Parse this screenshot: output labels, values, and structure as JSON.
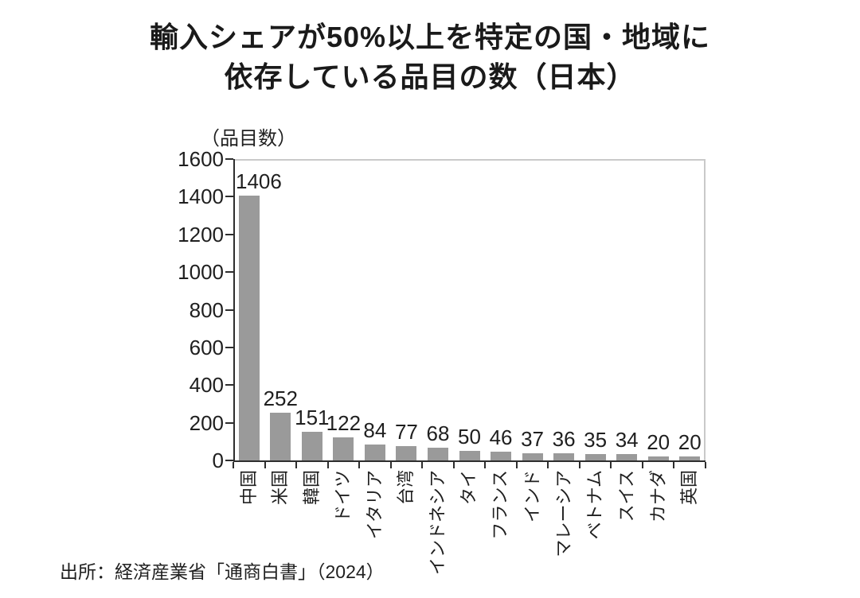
{
  "header": {
    "title_lines": [
      "輸入シェアが50%以上を特定の国・地域に",
      "依存している品目の数（日本）"
    ]
  },
  "footer": {
    "source": "出所：経済産業省「通商白書」（2024）"
  },
  "chart_data": {
    "type": "bar",
    "title": "輸入シェアが50%以上を特定の国・地域に依存している品目の数（日本）",
    "unit_label": "（品目数）",
    "categories": [
      "中国",
      "米国",
      "韓国",
      "ドイツ",
      "イタリア",
      "台湾",
      "インドネシア",
      "タイ",
      "フランス",
      "インド",
      "マレーシア",
      "ベトナム",
      "スイス",
      "カナダ",
      "英国"
    ],
    "values": [
      1406,
      252,
      151,
      122,
      84,
      77,
      68,
      50,
      46,
      37,
      36,
      35,
      34,
      20,
      20
    ],
    "xlabel": "",
    "ylabel": "（品目数）",
    "ylim": [
      0,
      1600
    ],
    "yticks": [
      0,
      200,
      400,
      600,
      800,
      1000,
      1200,
      1400,
      1600
    ],
    "grid": false,
    "legend": "none",
    "value_labels_shown": true,
    "x_label_rotation": -90,
    "bar_color": "#9a9a9a",
    "axis_color": "#2e2e2e",
    "plot_border_color": "#c9c9c9",
    "source": "出所：経済産業省「通商白書」（2024）"
  }
}
